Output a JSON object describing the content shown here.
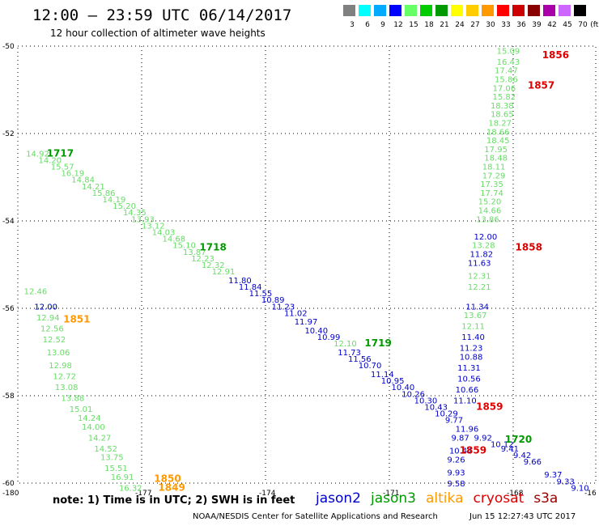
{
  "header": {
    "title": "12:00 – 23:59 UTC 06/14/2017",
    "subtitle": "12 hour collection of altimeter wave heights"
  },
  "legend": {
    "unit": "(ft)",
    "items": [
      {
        "label": "3",
        "color": "#808080"
      },
      {
        "label": "6",
        "color": "#00ffff"
      },
      {
        "label": "9",
        "color": "#00aaff"
      },
      {
        "label": "12",
        "color": "#0000ff"
      },
      {
        "label": "15",
        "color": "#66ff66"
      },
      {
        "label": "18",
        "color": "#00cc00"
      },
      {
        "label": "21",
        "color": "#009900"
      },
      {
        "label": "24",
        "color": "#ffff00"
      },
      {
        "label": "27",
        "color": "#ffcc00"
      },
      {
        "label": "30",
        "color": "#ff9900"
      },
      {
        "label": "33",
        "color": "#ff0000"
      },
      {
        "label": "36",
        "color": "#cc0000"
      },
      {
        "label": "39",
        "color": "#880000"
      },
      {
        "label": "42",
        "color": "#aa00aa"
      },
      {
        "label": "45",
        "color": "#cc66ff"
      },
      {
        "label": "70",
        "color": "#000000"
      }
    ]
  },
  "axes": {
    "x_ticks": [
      "-180",
      "-177",
      "-174",
      "-171",
      "-168",
      "-16"
    ],
    "y_ticks": [
      "-50",
      "-52",
      "-54",
      "-56",
      "-58",
      "-60"
    ]
  },
  "colors": {
    "jason2": "#0000cc",
    "jason3": "#009900",
    "altika": "#ff9900",
    "cryosat": "#dd0000",
    "s3a": "#990000",
    "light": "#66dd66",
    "mid": "#33bb33"
  },
  "tracks": [
    {
      "sat": "light",
      "labels": [
        {
          "v": "15.09",
          "lon": -168.4,
          "lat": -50.1
        },
        {
          "v": "16.43",
          "lon": -168.4,
          "lat": -50.35
        },
        {
          "v": "17.47",
          "lon": -168.45,
          "lat": -50.55
        },
        {
          "v": "15.86",
          "lon": -168.45,
          "lat": -50.75
        },
        {
          "v": "17.06",
          "lon": -168.5,
          "lat": -50.95
        },
        {
          "v": "15.82",
          "lon": -168.5,
          "lat": -51.15
        },
        {
          "v": "18.38",
          "lon": -168.55,
          "lat": -51.35
        },
        {
          "v": "18.65",
          "lon": -168.55,
          "lat": -51.55
        },
        {
          "v": "18.27",
          "lon": -168.6,
          "lat": -51.75
        },
        {
          "v": "18.66",
          "lon": -168.65,
          "lat": -51.95
        },
        {
          "v": "18.45",
          "lon": -168.65,
          "lat": -52.15
        },
        {
          "v": "17.95",
          "lon": -168.7,
          "lat": -52.35
        },
        {
          "v": "18.48",
          "lon": -168.7,
          "lat": -52.55
        },
        {
          "v": "18.11",
          "lon": -168.75,
          "lat": -52.75
        },
        {
          "v": "17.29",
          "lon": -168.75,
          "lat": -52.95
        },
        {
          "v": "17.35",
          "lon": -168.8,
          "lat": -53.15
        },
        {
          "v": "17.74",
          "lon": -168.8,
          "lat": -53.35
        },
        {
          "v": "15.20",
          "lon": -168.85,
          "lat": -53.55
        },
        {
          "v": "14.66",
          "lon": -168.85,
          "lat": -53.75
        },
        {
          "v": "13.86",
          "lon": -168.9,
          "lat": -53.95
        }
      ]
    },
    {
      "sat": "jason2",
      "labels": [
        {
          "v": "12.00",
          "lon": -168.95,
          "lat": -54.35
        },
        {
          "v": "11.82",
          "lon": -169.05,
          "lat": -54.75
        },
        {
          "v": "11.63",
          "lon": -169.1,
          "lat": -54.95
        },
        {
          "v": "11.34",
          "lon": -169.15,
          "lat": -55.95
        },
        {
          "v": "11.40",
          "lon": -169.25,
          "lat": -56.65
        },
        {
          "v": "11.23",
          "lon": -169.3,
          "lat": -56.9
        },
        {
          "v": "10.88",
          "lon": -169.3,
          "lat": -57.1
        },
        {
          "v": "11.31",
          "lon": -169.35,
          "lat": -57.35
        },
        {
          "v": "10.56",
          "lon": -169.35,
          "lat": -57.6
        },
        {
          "v": "10.66",
          "lon": -169.4,
          "lat": -57.85
        },
        {
          "v": "11.10",
          "lon": -169.45,
          "lat": -58.1
        },
        {
          "v": "9.87",
          "lon": -169.5,
          "lat": -58.95
        },
        {
          "v": "10.44",
          "lon": -169.55,
          "lat": -59.25
        },
        {
          "v": "9.26",
          "lon": -169.6,
          "lat": -59.45
        },
        {
          "v": "9.93",
          "lon": -169.6,
          "lat": -59.75
        },
        {
          "v": "9.58",
          "lon": -169.6,
          "lat": -60.0
        }
      ]
    },
    {
      "sat": "light",
      "labels": [
        {
          "v": "13.28",
          "lon": -169.0,
          "lat": -54.55
        },
        {
          "v": "12.31",
          "lon": -169.1,
          "lat": -55.25
        },
        {
          "v": "12.21",
          "lon": -169.1,
          "lat": -55.5
        },
        {
          "v": "13.67",
          "lon": -169.2,
          "lat": -56.15
        },
        {
          "v": "12.11",
          "lon": -169.25,
          "lat": -56.4
        }
      ]
    },
    {
      "sat": "light",
      "labels": [
        {
          "v": "14.92",
          "lon": -179.8,
          "lat": -52.45
        },
        {
          "v": "14.20",
          "lon": -179.5,
          "lat": -52.6
        },
        {
          "v": "15.57",
          "lon": -179.2,
          "lat": -52.75
        },
        {
          "v": "16.19",
          "lon": -178.95,
          "lat": -52.9
        },
        {
          "v": "14.84",
          "lon": -178.7,
          "lat": -53.05
        },
        {
          "v": "14.21",
          "lon": -178.45,
          "lat": -53.2
        },
        {
          "v": "15.86",
          "lon": -178.2,
          "lat": -53.35
        },
        {
          "v": "14.19",
          "lon": -177.95,
          "lat": -53.5
        },
        {
          "v": "15.20",
          "lon": -177.7,
          "lat": -53.65
        },
        {
          "v": "14.35",
          "lon": -177.45,
          "lat": -53.8
        },
        {
          "v": "13.93",
          "lon": -177.25,
          "lat": -53.95
        },
        {
          "v": "13.12",
          "lon": -177.0,
          "lat": -54.1
        },
        {
          "v": "14.03",
          "lon": -176.75,
          "lat": -54.25
        },
        {
          "v": "14.68",
          "lon": -176.5,
          "lat": -54.4
        },
        {
          "v": "15.10",
          "lon": -176.25,
          "lat": -54.55
        },
        {
          "v": "13.87",
          "lon": -176.0,
          "lat": -54.7
        },
        {
          "v": "12.23",
          "lon": -175.8,
          "lat": -54.85
        },
        {
          "v": "12.32",
          "lon": -175.55,
          "lat": -55.0
        },
        {
          "v": "12.91",
          "lon": -175.3,
          "lat": -55.15
        }
      ]
    },
    {
      "sat": "jason2",
      "labels": [
        {
          "v": "11.80",
          "lon": -174.9,
          "lat": -55.35
        },
        {
          "v": "11.84",
          "lon": -174.65,
          "lat": -55.5
        },
        {
          "v": "11.55",
          "lon": -174.4,
          "lat": -55.65
        },
        {
          "v": "10.89",
          "lon": -174.1,
          "lat": -55.8
        },
        {
          "v": "11.23",
          "lon": -173.85,
          "lat": -55.95
        },
        {
          "v": "11.02",
          "lon": -173.55,
          "lat": -56.1
        },
        {
          "v": "11.97",
          "lon": -173.3,
          "lat": -56.3
        },
        {
          "v": "10.40",
          "lon": -173.05,
          "lat": -56.5
        },
        {
          "v": "10.99",
          "lon": -172.75,
          "lat": -56.65
        },
        {
          "v": "11.73",
          "lon": -172.25,
          "lat": -57.0
        },
        {
          "v": "11.56",
          "lon": -172.0,
          "lat": -57.15
        },
        {
          "v": "10.70",
          "lon": -171.75,
          "lat": -57.3
        },
        {
          "v": "11.14",
          "lon": -171.45,
          "lat": -57.5
        },
        {
          "v": "10.95",
          "lon": -171.2,
          "lat": -57.65
        },
        {
          "v": "10.40",
          "lon": -170.95,
          "lat": -57.8
        },
        {
          "v": "10.26",
          "lon": -170.7,
          "lat": -57.95
        },
        {
          "v": "10.30",
          "lon": -170.4,
          "lat": -58.1
        },
        {
          "v": "10.43",
          "lon": -170.15,
          "lat": -58.25
        },
        {
          "v": "10.29",
          "lon": -169.9,
          "lat": -58.4
        },
        {
          "v": "9.77",
          "lon": -169.65,
          "lat": -58.55
        },
        {
          "v": "11.96",
          "lon": -169.4,
          "lat": -58.75
        },
        {
          "v": "9.92",
          "lon": -168.95,
          "lat": -58.95
        },
        {
          "v": "10.12",
          "lon": -168.55,
          "lat": -59.1
        },
        {
          "v": "9.41",
          "lon": -168.3,
          "lat": -59.2
        },
        {
          "v": "9.42",
          "lon": -168.0,
          "lat": -59.35
        },
        {
          "v": "9.66",
          "lon": -167.75,
          "lat": -59.5
        },
        {
          "v": "9.37",
          "lon": -167.25,
          "lat": -59.8
        },
        {
          "v": "9.33",
          "lon": -166.95,
          "lat": -59.95
        },
        {
          "v": "9.10",
          "lon": -166.6,
          "lat": -60.1
        }
      ]
    },
    {
      "sat": "light",
      "labels": [
        {
          "v": "12.10",
          "lon": -172.35,
          "lat": -56.8
        }
      ]
    },
    {
      "sat": "jason3",
      "labels": [
        {
          "v": "1717",
          "lon": -179.3,
          "lat": -52.45,
          "big": true
        },
        {
          "v": "1718",
          "lon": -175.6,
          "lat": -54.6,
          "big": true
        },
        {
          "v": "1719",
          "lon": -171.6,
          "lat": -56.8,
          "big": true
        },
        {
          "v": "1720",
          "lon": -168.2,
          "lat": -59.0,
          "big": true
        }
      ]
    },
    {
      "sat": "cryosat",
      "labels": [
        {
          "v": "1856",
          "lon": -167.3,
          "lat": -50.2,
          "big": true
        },
        {
          "v": "1857",
          "lon": -167.65,
          "lat": -50.9,
          "big": true
        },
        {
          "v": "1858",
          "lon": -167.95,
          "lat": -54.6,
          "big": true
        },
        {
          "v": "1859",
          "lon": -168.9,
          "lat": -58.25,
          "big": true
        },
        {
          "v": "1859",
          "lon": -169.3,
          "lat": -59.25,
          "big": true
        }
      ]
    },
    {
      "sat": "altika",
      "labels": [
        {
          "v": "1851",
          "lon": -178.9,
          "lat": -56.25,
          "big": true
        },
        {
          "v": "1850",
          "lon": -176.7,
          "lat": -59.9,
          "big": true
        },
        {
          "v": "1849",
          "lon": -176.6,
          "lat": -60.1,
          "big": true
        }
      ]
    },
    {
      "sat": "light",
      "labels": [
        {
          "v": "12.46",
          "lon": -179.85,
          "lat": -55.6
        },
        {
          "v": "12.00",
          "lon": -179.6,
          "lat": -55.95
        },
        {
          "v": "12.94",
          "lon": -179.55,
          "lat": -56.2
        },
        {
          "v": "12.56",
          "lon": -179.45,
          "lat": -56.45
        },
        {
          "v": "12.52",
          "lon": -179.4,
          "lat": -56.7
        },
        {
          "v": "13.06",
          "lon": -179.3,
          "lat": -57.0
        },
        {
          "v": "12.98",
          "lon": -179.25,
          "lat": -57.3
        },
        {
          "v": "12.72",
          "lon": -179.15,
          "lat": -57.55
        },
        {
          "v": "13.08",
          "lon": -179.1,
          "lat": -57.8
        },
        {
          "v": "13.88",
          "lon": -178.95,
          "lat": -58.05
        },
        {
          "v": "15.01",
          "lon": -178.75,
          "lat": -58.3
        },
        {
          "v": "14.24",
          "lon": -178.55,
          "lat": -58.5
        },
        {
          "v": "14.00",
          "lon": -178.45,
          "lat": -58.7
        },
        {
          "v": "14.27",
          "lon": -178.3,
          "lat": -58.95
        },
        {
          "v": "14.52",
          "lon": -178.15,
          "lat": -59.2
        },
        {
          "v": "13.75",
          "lon": -178.0,
          "lat": -59.4
        },
        {
          "v": "15.51",
          "lon": -177.9,
          "lat": -59.65
        },
        {
          "v": "16.91",
          "lon": -177.75,
          "lat": -59.85
        },
        {
          "v": "16.32",
          "lon": -177.55,
          "lat": -60.1
        }
      ]
    },
    {
      "sat": "jason2",
      "labels": [
        {
          "v": "12.00",
          "lon": -179.6,
          "lat": -55.95
        }
      ]
    }
  ],
  "footer": {
    "note": "note: 1) Time is in UTC; 2) SWH is in feet",
    "sats": [
      {
        "name": "jason2",
        "color": "#0000cc"
      },
      {
        "name": "jason3",
        "color": "#009900"
      },
      {
        "name": "altika",
        "color": "#ff9900"
      },
      {
        "name": "cryosat",
        "color": "#dd0000"
      },
      {
        "name": "s3a",
        "color": "#990000"
      }
    ],
    "credit": "NOAA/NESDIS Center for Satellite Applications and Research",
    "stamp": "Jun 15 12:27:43 UTC 2017"
  }
}
